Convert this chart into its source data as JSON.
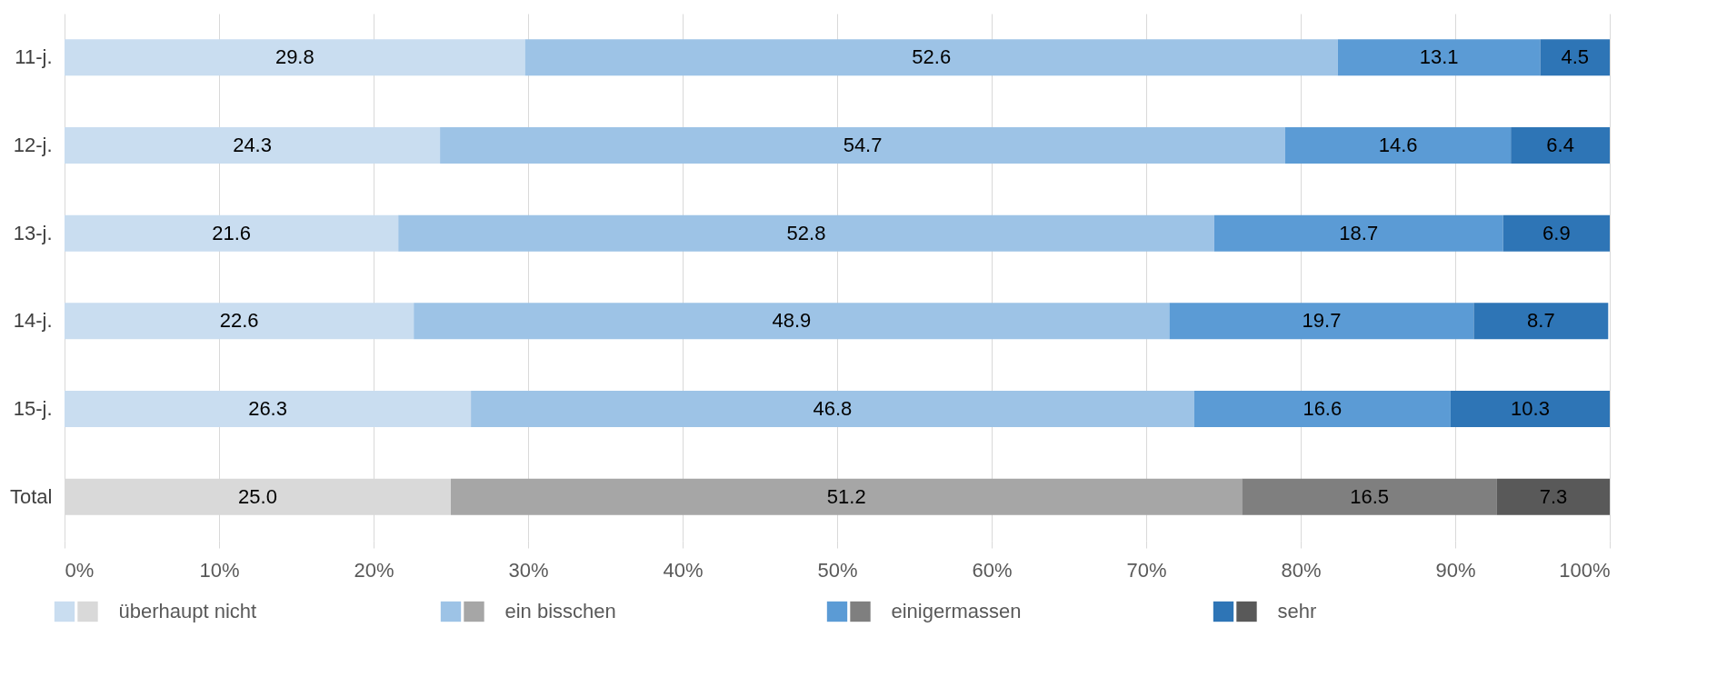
{
  "chart_data": {
    "type": "bar",
    "orientation": "horizontal",
    "stacked": true,
    "categories": [
      "11-j.",
      "12-j.",
      "13-j.",
      "14-j.",
      "15-j.",
      "Total"
    ],
    "series": [
      {
        "name": "überhaupt nicht",
        "colors": [
          "#c9ddf0",
          "#c9ddf0",
          "#c9ddf0",
          "#c9ddf0",
          "#c9ddf0",
          "#d9d9d9"
        ],
        "values": [
          29.8,
          24.3,
          21.6,
          22.6,
          26.3,
          25.0
        ],
        "value_labels": [
          "29.8",
          "24.3",
          "21.6",
          "22.6",
          "26.3",
          "25.0"
        ]
      },
      {
        "name": "ein bisschen",
        "colors": [
          "#9dc3e6",
          "#9dc3e6",
          "#9dc3e6",
          "#9dc3e6",
          "#9dc3e6",
          "#a6a6a6"
        ],
        "values": [
          52.6,
          54.7,
          52.8,
          48.9,
          46.8,
          51.2
        ],
        "value_labels": [
          "52.6",
          "54.7",
          "52.8",
          "48.9",
          "46.8",
          "51.2"
        ]
      },
      {
        "name": "einigermassen",
        "colors": [
          "#5b9bd5",
          "#5b9bd5",
          "#5b9bd5",
          "#5b9bd5",
          "#5b9bd5",
          "#7f7f7f"
        ],
        "values": [
          13.1,
          14.6,
          18.7,
          19.7,
          16.6,
          16.5
        ],
        "value_labels": [
          "13.1",
          "14.6",
          "18.7",
          "19.7",
          "16.6",
          "16.5"
        ]
      },
      {
        "name": "sehr",
        "colors": [
          "#2e75b6",
          "#2e75b6",
          "#2e75b6",
          "#2e75b6",
          "#2e75b6",
          "#595959"
        ],
        "values": [
          4.5,
          6.4,
          6.9,
          8.7,
          10.3,
          7.3
        ],
        "value_labels": [
          "4.5",
          "6.4",
          "6.9",
          "8.7",
          "10.3",
          "7.3"
        ]
      }
    ],
    "xlim": [
      0,
      100
    ],
    "xticks": [
      {
        "value": 0,
        "label": "0%"
      },
      {
        "value": 10,
        "label": "10%"
      },
      {
        "value": 20,
        "label": "20%"
      },
      {
        "value": 30,
        "label": "30%"
      },
      {
        "value": 40,
        "label": "40%"
      },
      {
        "value": 50,
        "label": "50%"
      },
      {
        "value": 60,
        "label": "60%"
      },
      {
        "value": 70,
        "label": "70%"
      },
      {
        "value": 80,
        "label": "80%"
      },
      {
        "value": 90,
        "label": "90%"
      },
      {
        "value": 100,
        "label": "100%"
      }
    ],
    "grid": "x",
    "legend": "bottom"
  }
}
